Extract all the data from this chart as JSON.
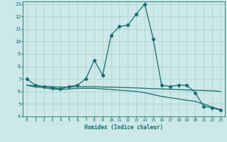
{
  "xlabel": "Humidex (Indice chaleur)",
  "bg_color": "#cce8e8",
  "line_color": "#1a6b6b",
  "grid_color": "#aad4d4",
  "xlim": [
    -0.5,
    23.5
  ],
  "ylim": [
    4,
    13.2
  ],
  "xticks": [
    0,
    1,
    2,
    3,
    4,
    5,
    6,
    7,
    8,
    9,
    10,
    11,
    12,
    13,
    14,
    15,
    16,
    17,
    18,
    19,
    20,
    21,
    22,
    23
  ],
  "yticks": [
    4,
    5,
    6,
    7,
    8,
    9,
    10,
    11,
    12,
    13
  ],
  "line1_x": [
    0,
    1,
    2,
    3,
    4,
    5,
    6,
    7,
    8,
    9,
    10,
    11,
    12,
    13,
    14,
    15,
    16,
    17,
    18,
    19,
    20,
    21,
    22,
    23
  ],
  "line1_y": [
    7.0,
    6.5,
    6.4,
    6.3,
    6.2,
    6.4,
    6.5,
    7.0,
    8.5,
    7.3,
    10.5,
    11.2,
    11.3,
    12.2,
    13.0,
    10.2,
    6.5,
    6.4,
    6.5,
    6.5,
    5.9,
    4.8,
    4.7,
    4.5
  ],
  "line2_x": [
    0,
    1,
    2,
    3,
    4,
    5,
    6,
    7,
    8,
    9,
    10,
    11,
    12,
    13,
    14,
    15,
    16,
    17,
    18,
    19,
    20,
    21,
    22,
    23
  ],
  "line2_y": [
    6.5,
    6.45,
    6.4,
    6.38,
    6.35,
    6.35,
    6.38,
    6.38,
    6.38,
    6.35,
    6.35,
    6.32,
    6.3,
    6.28,
    6.25,
    6.22,
    6.2,
    6.18,
    6.15,
    6.12,
    6.1,
    6.08,
    6.05,
    6.0
  ],
  "line3_x": [
    0,
    1,
    2,
    3,
    4,
    5,
    6,
    7,
    8,
    9,
    10,
    11,
    12,
    13,
    14,
    15,
    16,
    17,
    18,
    19,
    20,
    21,
    22,
    23
  ],
  "line3_y": [
    6.5,
    6.35,
    6.3,
    6.2,
    6.15,
    6.2,
    6.25,
    6.25,
    6.25,
    6.2,
    6.15,
    6.1,
    6.05,
    6.0,
    5.9,
    5.75,
    5.6,
    5.5,
    5.4,
    5.3,
    5.2,
    5.0,
    4.75,
    4.55
  ]
}
